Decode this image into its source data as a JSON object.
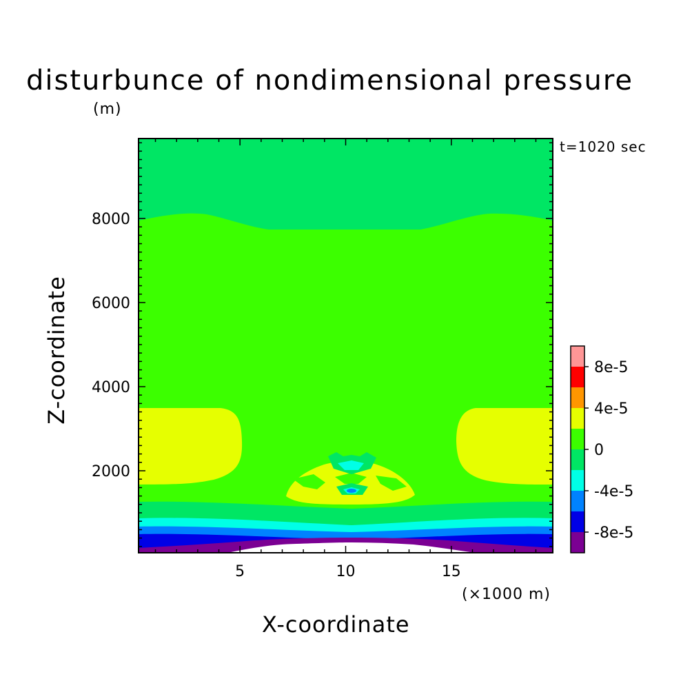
{
  "chart_data": {
    "type": "contour",
    "title": "disturbunce of nondimensional pressure",
    "annotation": "t=1020 sec",
    "xlabel": "X-coordinate",
    "ylabel": "Z-coordinate",
    "x_unit_label": "(×1000 m)",
    "y_unit_label": "(m)",
    "xlim": [
      0.2,
      19.8
    ],
    "ylim": [
      50,
      9900
    ],
    "x_ticks": [
      5,
      10,
      15
    ],
    "x_tick_labels": [
      "5",
      "10",
      "15"
    ],
    "y_ticks": [
      2000,
      4000,
      6000,
      8000
    ],
    "y_tick_labels": [
      "2000",
      "4000",
      "6000",
      "8000"
    ],
    "colorbar": {
      "levels": [
        -0.0001,
        -8e-05,
        -6e-05,
        -4e-05,
        -2e-05,
        0,
        2e-05,
        4e-05,
        6e-05,
        8e-05,
        0.0001
      ],
      "colors": [
        "#7b0093",
        "#0000e6",
        "#0082ff",
        "#00ffe6",
        "#00e664",
        "#3cff00",
        "#e6ff00",
        "#ff9600",
        "#ff0000",
        "#ff9696"
      ],
      "tick_labels": [
        "8e-5",
        "4e-5",
        "0",
        "-4e-5",
        "-8e-5"
      ]
    },
    "regions": [
      {
        "name": "upper-layer",
        "value_range": [
          -2e-05,
          0
        ],
        "z_range": [
          7800,
          9900
        ]
      },
      {
        "name": "middle-layer",
        "value_range": [
          0,
          2e-05
        ],
        "z_range": [
          1300,
          7800
        ]
      },
      {
        "name": "left-lobe",
        "value_range": [
          2e-05,
          4e-05
        ],
        "x_range": [
          0.2,
          5
        ],
        "z_range": [
          1600,
          3500
        ]
      },
      {
        "name": "right-lobe",
        "value_range": [
          2e-05,
          4e-05
        ],
        "x_range": [
          15,
          19.8
        ],
        "z_range": [
          1600,
          3500
        ]
      },
      {
        "name": "central-dome",
        "value_range": [
          2e-05,
          4e-05
        ],
        "x_range": [
          7,
          13.5
        ],
        "z_range": [
          1200,
          2000
        ]
      },
      {
        "name": "surface-bands",
        "value_range": [
          -0.0001,
          -2e-05
        ],
        "z_range": [
          50,
          1300
        ]
      }
    ]
  }
}
